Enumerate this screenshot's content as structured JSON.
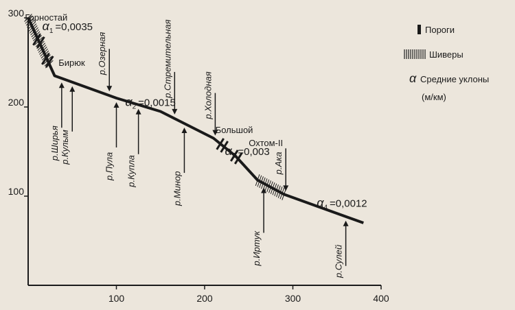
{
  "chart_data": {
    "type": "line",
    "x_ticks": [
      "100",
      "200",
      "300",
      "400"
    ],
    "y_ticks": [
      "300",
      "200",
      "100"
    ],
    "xlim": [
      0,
      400
    ],
    "ylim": [
      0,
      300
    ],
    "profile": [
      {
        "x": 0,
        "y": 300
      },
      {
        "x": 30,
        "y": 235
      },
      {
        "x": 100,
        "y": 210
      },
      {
        "x": 150,
        "y": 195
      },
      {
        "x": 170,
        "y": 185
      },
      {
        "x": 210,
        "y": 165
      },
      {
        "x": 235,
        "y": 145
      },
      {
        "x": 260,
        "y": 118
      },
      {
        "x": 290,
        "y": 102
      },
      {
        "x": 380,
        "y": 70
      }
    ],
    "legend": {
      "rapids_label": "Пороги",
      "shivers_label": "Шиверы",
      "slope_symbol": "α",
      "slope_label": "Средние уклоны",
      "slope_units": "(м/км)"
    },
    "slopes": [
      {
        "symbol": "α",
        "index": "1",
        "value": "=0,0035"
      },
      {
        "symbol": "α",
        "index": "2",
        "value": "=0,0015"
      },
      {
        "symbol": "α",
        "index": "3",
        "value": "=0,003"
      },
      {
        "symbol": "α",
        "index": "4",
        "value": "=0,0012"
      }
    ],
    "rapids": [
      {
        "name": "Горностай",
        "x": 12
      },
      {
        "name": "Бирюк",
        "x": 22
      },
      {
        "name": "Большой",
        "x": 220
      },
      {
        "name": "Охтом-II",
        "x": 236
      }
    ],
    "tributaries": [
      {
        "name": "р.Ширья",
        "x": 38,
        "side": "below"
      },
      {
        "name": "р.Кулым",
        "x": 50,
        "side": "below"
      },
      {
        "name": "р.Озерная",
        "x": 92,
        "side": "above"
      },
      {
        "name": "р.Пула",
        "x": 100,
        "side": "below"
      },
      {
        "name": "р.Купла",
        "x": 125,
        "side": "below"
      },
      {
        "name": "р.Стремительная",
        "x": 166,
        "side": "above"
      },
      {
        "name": "р.Минор",
        "x": 177,
        "side": "below"
      },
      {
        "name": "р.Холодная",
        "x": 212,
        "side": "above"
      },
      {
        "name": "р.Иртук",
        "x": 267,
        "side": "below"
      },
      {
        "name": "р.Ака",
        "x": 292,
        "side": "above"
      },
      {
        "name": "р.Сулей",
        "x": 360,
        "side": "below"
      }
    ]
  }
}
